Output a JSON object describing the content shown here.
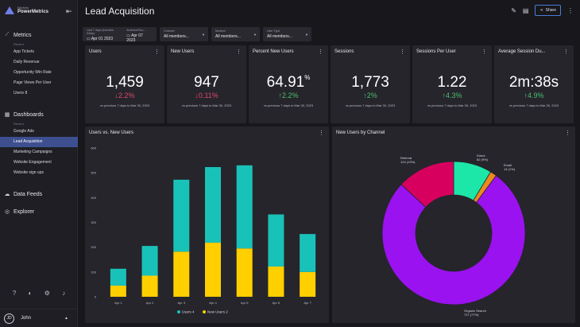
{
  "brand": {
    "small": "Klipfolio",
    "big": "PowerMetrics"
  },
  "sidebar": {
    "metrics_label": "Metrics",
    "recent_label": "Recent",
    "metrics_items": [
      "App Tickets",
      "Daily Revenue",
      "Opportunity Win Rate",
      "Page Views Per User",
      "Users 8"
    ],
    "dashboards_label": "Dashboards",
    "dashboards_recent_label": "Recent",
    "dashboard_items": [
      "Google Ads",
      "Lead Acquisition",
      "Marketing Campaigns",
      "Website Engagement",
      "Website sign ups"
    ],
    "active_dashboard": "Lead Acquisition",
    "data_feeds_label": "Data Feeds",
    "explorer_label": "Explorer"
  },
  "user": {
    "initials": "JD",
    "name": "John"
  },
  "header": {
    "title": "Lead Acquisition",
    "share_label": "Share"
  },
  "filters": {
    "date": {
      "label": "Last 7 days (includes today)",
      "tz_label": "America/Toro...",
      "from": "Apr 01 2023",
      "to": "Apr 07 2023"
    },
    "channel": {
      "label": "Channel",
      "value": "All members..."
    },
    "medium": {
      "label": "Medium",
      "value": "All members..."
    },
    "user_type": {
      "label": "User Type",
      "value": "All members..."
    }
  },
  "kpis": [
    {
      "title": "Users",
      "value": "1,459",
      "suffix": "",
      "delta": "2.2%",
      "direction": "down",
      "footer": "vs previous 7 days to Mar 30, 2023"
    },
    {
      "title": "New Users",
      "value": "947",
      "suffix": "",
      "delta": "0.11%",
      "direction": "down",
      "footer": "vs previous 7 days to Mar 30, 2023"
    },
    {
      "title": "Percent New Users",
      "value": "64.91",
      "suffix": "%",
      "delta": "2.2%",
      "direction": "up",
      "footer": "vs previous 7 days to Mar 30, 2023"
    },
    {
      "title": "Sessions",
      "value": "1,773",
      "suffix": "",
      "delta": "2%",
      "direction": "up",
      "footer": "vs previous 7 days to Mar 30, 2023"
    },
    {
      "title": "Sessions Per User",
      "value": "1.22",
      "suffix": "",
      "delta": "4.3%",
      "direction": "up",
      "footer": "vs previous 7 days to Mar 30, 2023"
    },
    {
      "title": "Average Session Du...",
      "value": "2m:38s",
      "suffix": "",
      "delta": "4.9%",
      "direction": "up",
      "footer": "vs previous 7 days to Mar 30, 2023"
    }
  ],
  "colors": {
    "users_series": "#19c2b8",
    "new_users_series": "#ffcf00",
    "up": "#4cbf6b",
    "down": "#e0466a",
    "accent": "#3d4f8f"
  },
  "icons": [
    "collapse-icon",
    "metrics-icon",
    "dashboards-icon",
    "data-feeds-icon",
    "explorer-icon",
    "help-icon",
    "palette-icon",
    "settings-icon",
    "bell-icon",
    "edit-icon",
    "print-icon",
    "share-icon",
    "more-icon"
  ],
  "chart_data": [
    {
      "type": "bar",
      "title": "Users vs. New Users",
      "categories": [
        "Apr 1",
        "Apr 2",
        "Apr 3",
        "Apr 4",
        "Apr 5",
        "Apr 6",
        "Apr 7"
      ],
      "stacked": true,
      "series": [
        {
          "name": "Users 4",
          "values": [
            68,
            120,
            290,
            305,
            335,
            210,
            153
          ]
        },
        {
          "name": "New Users 2",
          "values": [
            45,
            85,
            182,
            218,
            195,
            122,
            100
          ]
        }
      ],
      "ylim": [
        0,
        600
      ],
      "yticks": [
        "0",
        "100",
        "200",
        "300",
        "400",
        "500",
        "600"
      ],
      "legend": "bottom",
      "grid": false
    },
    {
      "type": "pie",
      "donut": true,
      "title": "New Users by Channel",
      "slices": [
        {
          "name": "Direct",
          "label": "82 (9%)",
          "value": 82,
          "color": "#1de7a8"
        },
        {
          "name": "Email",
          "label": "14 (1%)",
          "value": 14,
          "color": "#ec8a1e"
        },
        {
          "name": "Organic Search",
          "label": "727 (77%)",
          "value": 727,
          "color": "#9a12f0"
        },
        {
          "name": "Referral",
          "label": "124 (13%)",
          "value": 124,
          "color": "#d8005e"
        }
      ]
    }
  ]
}
